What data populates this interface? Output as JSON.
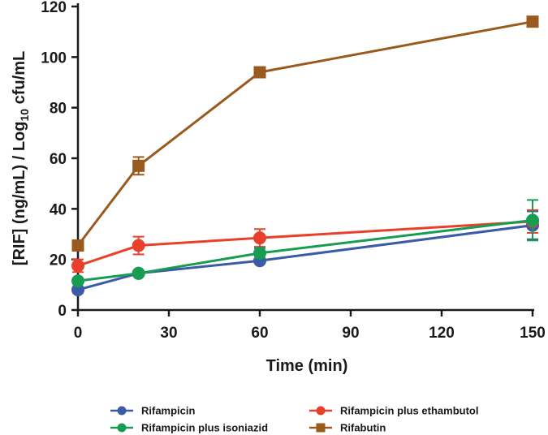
{
  "chart_data": {
    "type": "line",
    "title": "",
    "xlabel": "Time (min)",
    "ylabel_parts": {
      "main": "[RIF] (ng/mL) / Log",
      "sub": "10",
      "tail": " cfu/mL"
    },
    "x": [
      0,
      20,
      60,
      150
    ],
    "xlim": [
      0,
      150
    ],
    "ylim": [
      0,
      120
    ],
    "xticks": [
      0,
      30,
      60,
      90,
      120,
      150
    ],
    "yticks": [
      0,
      20,
      40,
      60,
      80,
      100,
      120
    ],
    "grid": false,
    "legend_position": "bottom",
    "series": [
      {
        "name": "Rifampicin",
        "color": "#3b5ba8",
        "marker": "circle",
        "values": [
          8,
          14.5,
          19.5,
          33.5
        ],
        "errors": [
          0,
          0,
          0,
          5.5
        ]
      },
      {
        "name": "Rifampicin plus ethambutol",
        "color": "#e8402b",
        "marker": "circle",
        "values": [
          17.5,
          25.5,
          28.5,
          35
        ],
        "errors": [
          2.5,
          3.5,
          3.5,
          4.5
        ]
      },
      {
        "name": "Rifampicin plus isoniazid",
        "color": "#179c52",
        "marker": "circle",
        "values": [
          11.5,
          14.5,
          22.5,
          35.5
        ],
        "errors": [
          0,
          0,
          2,
          8
        ]
      },
      {
        "name": "Rifabutin",
        "color": "#9a5a1e",
        "marker": "square",
        "values": [
          25.5,
          57,
          94,
          114
        ],
        "errors": [
          0,
          3.5,
          0,
          0
        ]
      }
    ]
  }
}
